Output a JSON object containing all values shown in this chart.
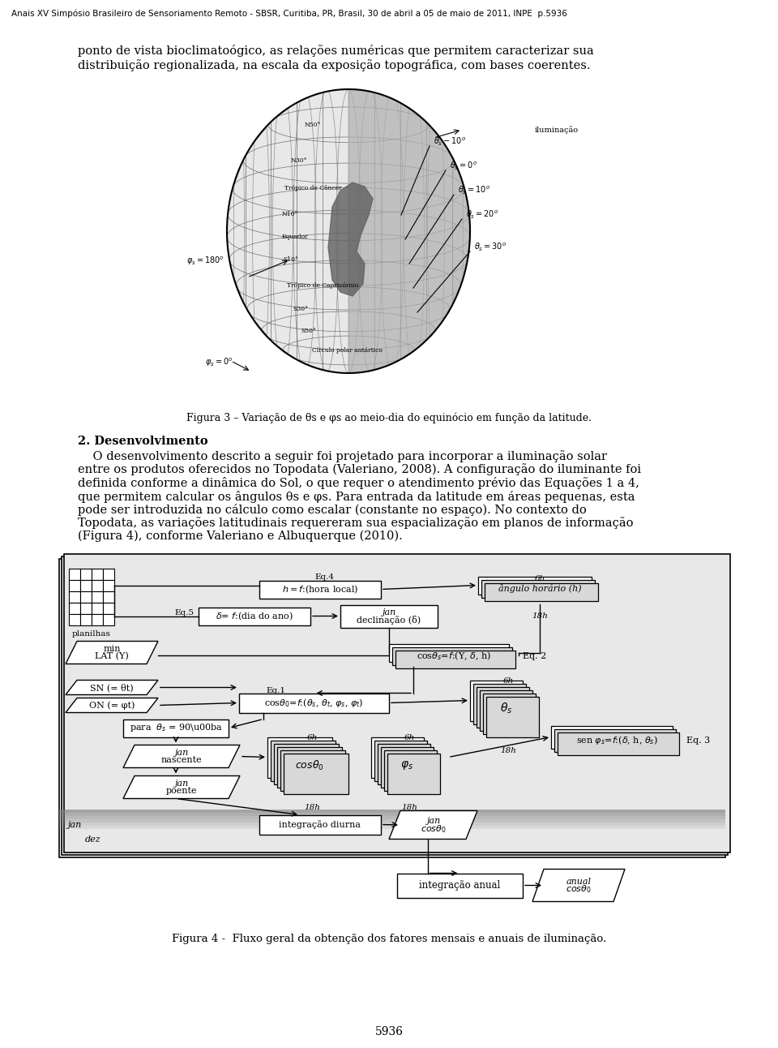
{
  "header": "Anais XV Simpósio Brasileiro de Sensoriamento Remoto - SBSR, Curitiba, PR, Brasil, 30 de abril a 05 de maio de 2011, INPE  p.5936",
  "intro_line1": "ponto de vista bioclimatoógico, as relações numéricas que permitem caracterizar sua",
  "intro_line2": "distribuição regionalizada, na escala da exposição topográfica, com bases coerentes.",
  "fig3_caption": "Figura 3 – Variação de θs e φs ao meio-dia do equinócio em função da latitude.",
  "section2_title": "2. Desenvolvimento",
  "section2_body": [
    "    O desenvolvimento descrito a seguir foi projetado para incorporar a iluminação solar",
    "entre os produtos oferecidos no Topodata (Valeriano, 2008). A configuração do iluminante foi",
    "definida conforme a dinâmica do Sol, o que requer o atendimento prévio das Equações 1 a 4,",
    "que permitem calcular os ângulos θs e φs. Para entrada da latitude em áreas pequenas, esta",
    "pode ser introduzida no cálculo como escalar (constante no espaço). No contexto do",
    "Topodata, as variações latitudinais requereram sua espacialização em planos de informação",
    "(Figura 4), conforme Valeriano e Albuquerque (2010)."
  ],
  "fig4_caption": "Figura 4 -  Fluxo geral da obtenção dos fatores mensais e anuais de iluminação.",
  "page_number": "5936"
}
